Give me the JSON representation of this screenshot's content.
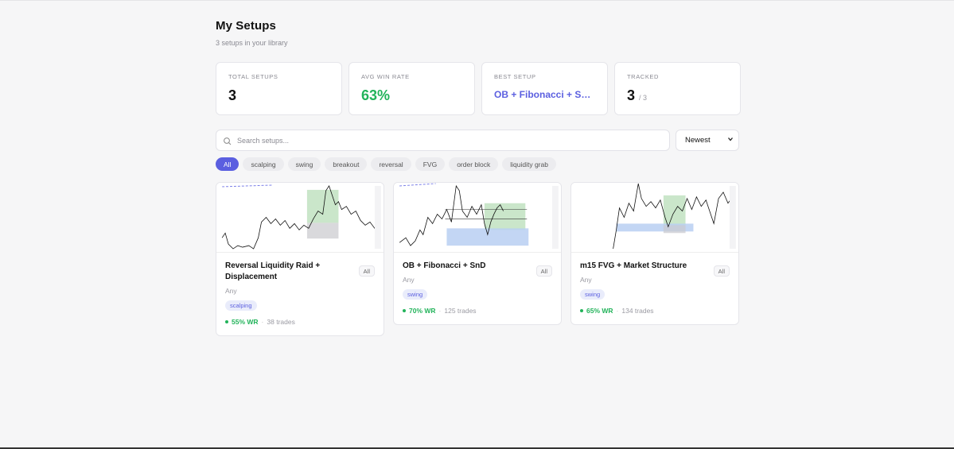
{
  "header": {
    "title": "My Setups",
    "subtitle": "3 setups in your library"
  },
  "stats": [
    {
      "label": "TOTAL SETUPS",
      "value": "3",
      "sub": ""
    },
    {
      "label": "AVG WIN RATE",
      "value": "63%",
      "sub": ""
    },
    {
      "label": "BEST SETUP",
      "value": "OB + Fibonacci + SnD ...",
      "sub": ""
    },
    {
      "label": "TRACKED",
      "value": "3",
      "sub": "/ 3"
    }
  ],
  "search": {
    "placeholder": "Search setups...",
    "value": ""
  },
  "sort": {
    "selected": "Newest"
  },
  "filters": [
    "All",
    "scalping",
    "swing",
    "breakout",
    "reversal",
    "FVG",
    "order block",
    "liquidity grab"
  ],
  "active_filter": "All",
  "cards": [
    {
      "title": "Reversal Liquidity Raid + Displacement",
      "badge": "All",
      "timeframe": "Any",
      "tag": "scalping",
      "win_rate": "55% WR",
      "separator": "·",
      "trades": "38 trades"
    },
    {
      "title": "OB + Fibonacci + SnD",
      "badge": "All",
      "timeframe": "Any",
      "tag": "swing",
      "win_rate": "70% WR",
      "separator": "·",
      "trades": "125 trades"
    },
    {
      "title": "m15 FVG + Market Structure",
      "badge": "All",
      "timeframe": "Any",
      "tag": "swing",
      "win_rate": "65% WR",
      "separator": "·",
      "trades": "134 trades"
    }
  ],
  "colors": {
    "accent": "#5b5fe0",
    "success": "#22b35a",
    "background": "#f6f6f7"
  },
  "icons": {
    "search": "search-icon",
    "sort_chevron": "chevron-down-icon"
  }
}
